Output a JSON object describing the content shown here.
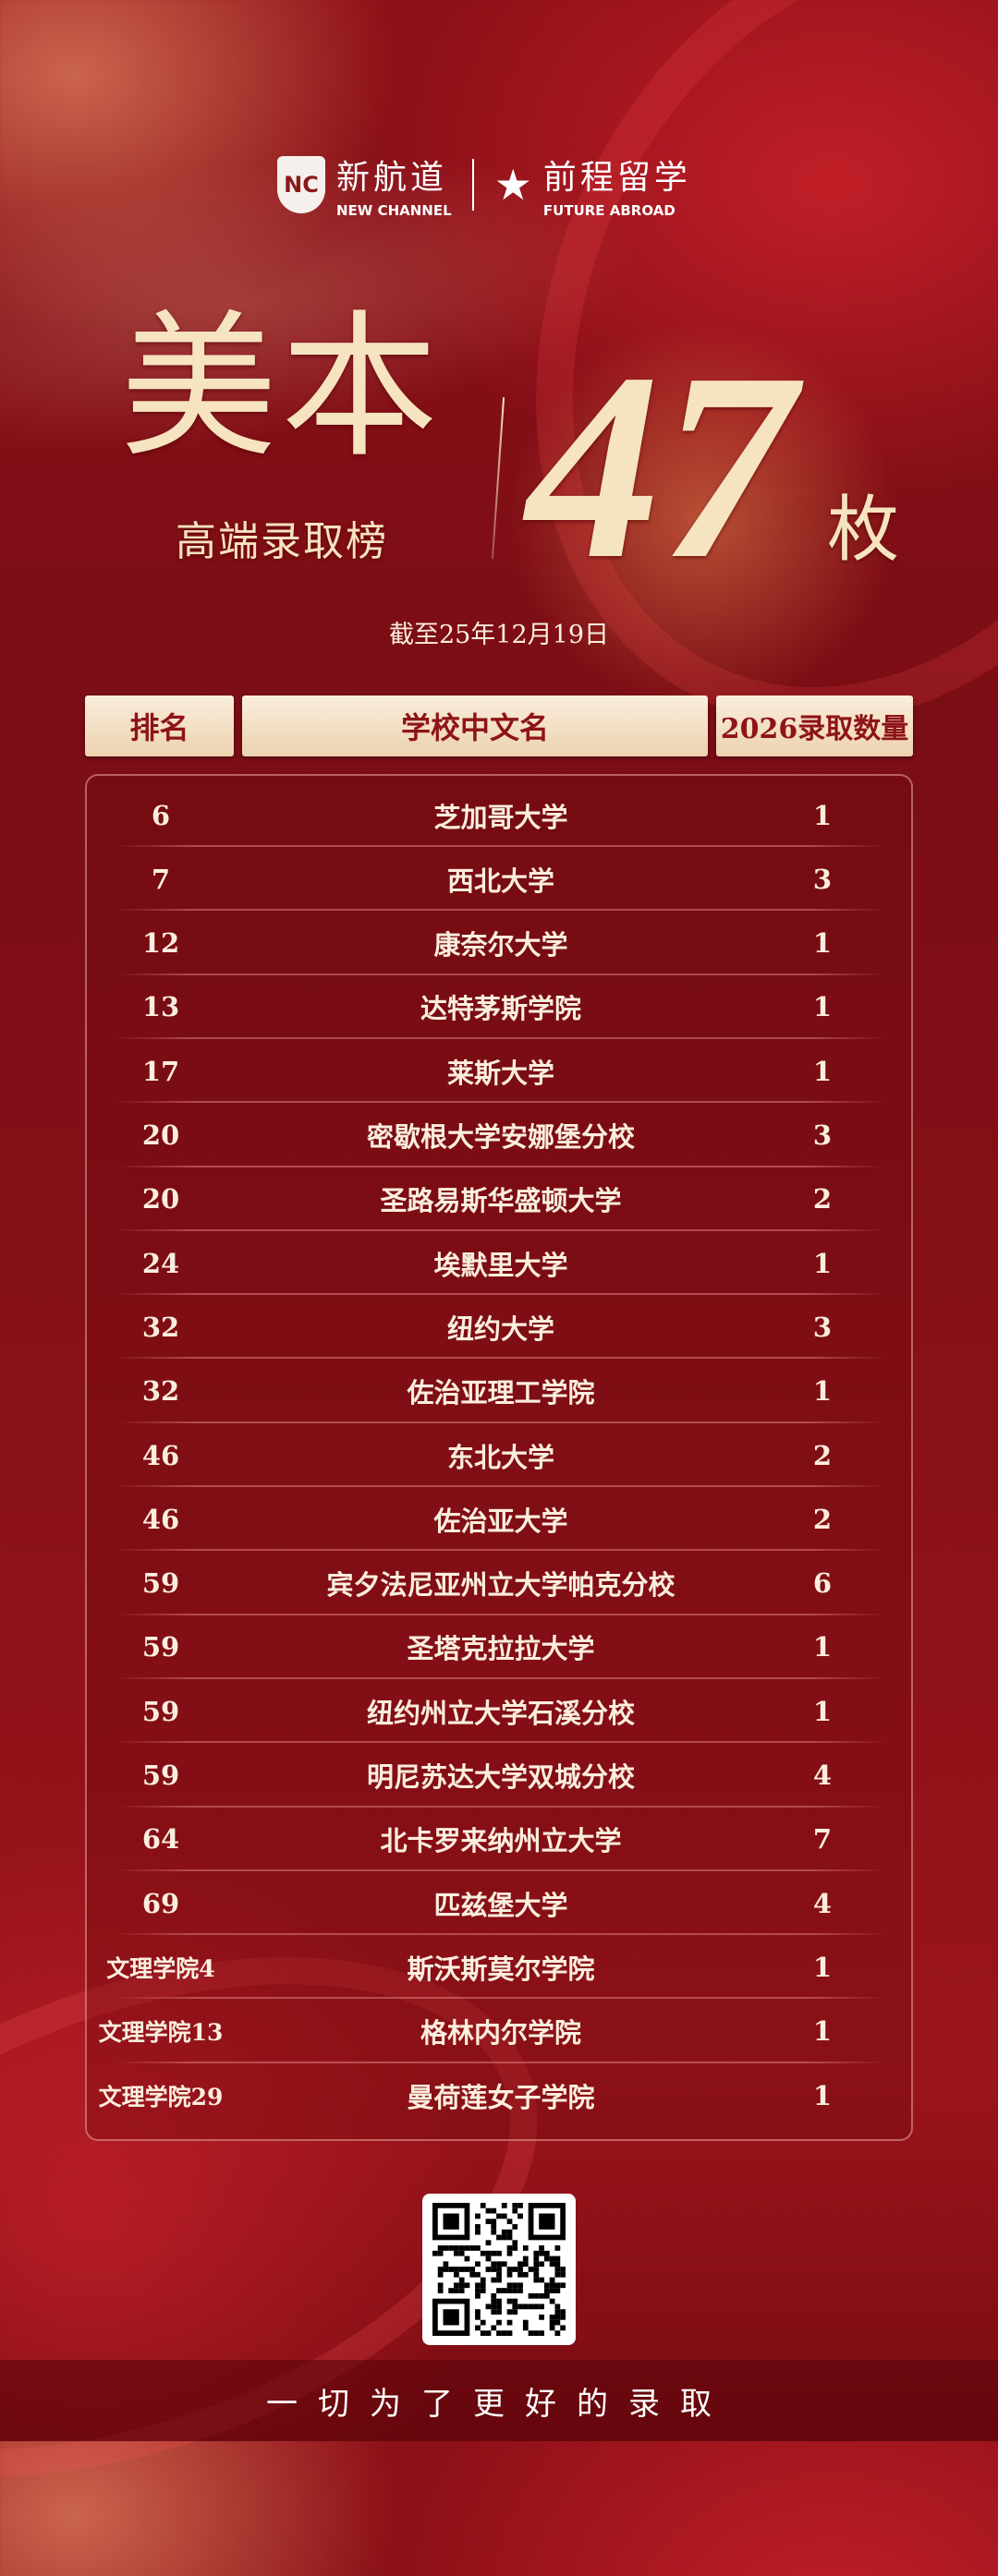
{
  "brand": {
    "logo1_mark": "NC",
    "logo1_cn": "新航道",
    "logo1_en": "NEW CHANNEL",
    "logo2_cn": "前程留学",
    "logo2_en": "FUTURE ABROAD"
  },
  "hero": {
    "title": "美本",
    "subtitle": "高端录取榜",
    "count": "47",
    "unit": "枚",
    "as_of": "截至25年12月19日"
  },
  "table": {
    "headers": [
      "排名",
      "学校中文名",
      "2026录取数量"
    ],
    "rows": [
      {
        "rank": "6",
        "name": "芝加哥大学",
        "count": "1"
      },
      {
        "rank": "7",
        "name": "西北大学",
        "count": "3"
      },
      {
        "rank": "12",
        "name": "康奈尔大学",
        "count": "1"
      },
      {
        "rank": "13",
        "name": "达特茅斯学院",
        "count": "1"
      },
      {
        "rank": "17",
        "name": "莱斯大学",
        "count": "1"
      },
      {
        "rank": "20",
        "name": "密歇根大学安娜堡分校",
        "count": "3"
      },
      {
        "rank": "20",
        "name": "圣路易斯华盛顿大学",
        "count": "2"
      },
      {
        "rank": "24",
        "name": "埃默里大学",
        "count": "1"
      },
      {
        "rank": "32",
        "name": "纽约大学",
        "count": "3"
      },
      {
        "rank": "32",
        "name": "佐治亚理工学院",
        "count": "1"
      },
      {
        "rank": "46",
        "name": "东北大学",
        "count": "2"
      },
      {
        "rank": "46",
        "name": "佐治亚大学",
        "count": "2"
      },
      {
        "rank": "59",
        "name": "宾夕法尼亚州立大学帕克分校",
        "count": "6"
      },
      {
        "rank": "59",
        "name": "圣塔克拉拉大学",
        "count": "1"
      },
      {
        "rank": "59",
        "name": "纽约州立大学石溪分校",
        "count": "1"
      },
      {
        "rank": "59",
        "name": "明尼苏达大学双城分校",
        "count": "4"
      },
      {
        "rank": "64",
        "name": "北卡罗来纳州立大学",
        "count": "7"
      },
      {
        "rank": "69",
        "name": "匹兹堡大学",
        "count": "4"
      },
      {
        "rank": "文理学院4",
        "name": "斯沃斯莫尔学院",
        "count": "1"
      },
      {
        "rank": "文理学院13",
        "name": "格林内尔学院",
        "count": "1"
      },
      {
        "rank": "文理学院29",
        "name": "曼荷莲女子学院",
        "count": "1"
      }
    ]
  },
  "footer": {
    "slogan": "一切为了更好的录取"
  },
  "colors": {
    "background": "#8a1119",
    "gold": "#f6e3c0",
    "header_text": "#8e1418"
  }
}
